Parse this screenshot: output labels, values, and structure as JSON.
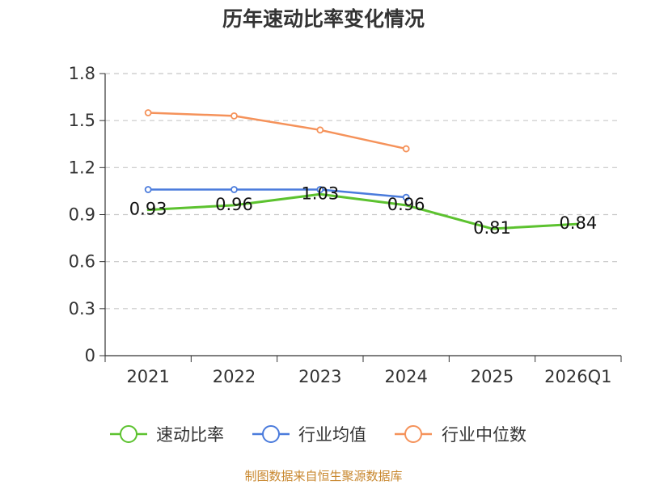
{
  "chart_data": {
    "type": "line",
    "title": "历年速动比率变化情况",
    "categories": [
      "2021",
      "2022",
      "2023",
      "2024",
      "2025",
      "2026Q1"
    ],
    "yticks": [
      "0",
      "0.3",
      "0.6",
      "0.9",
      "1.2",
      "1.5",
      "1.8"
    ],
    "ylim": [
      0,
      1.8
    ],
    "xlabel": "",
    "ylabel": "",
    "grid": "horizontal-dashed",
    "legend_position": "bottom",
    "series": [
      {
        "name": "速动比率",
        "color": "#5cc22f",
        "values": [
          0.93,
          0.96,
          1.03,
          0.96,
          0.81,
          0.84
        ],
        "labels": [
          "0.93",
          "0.96",
          "1.03",
          "0.96",
          "0.81",
          "0.84"
        ],
        "markers_visible": false
      },
      {
        "name": "行业均值",
        "color": "#4a7bdc",
        "values": [
          1.06,
          1.06,
          1.06,
          1.01,
          null,
          null
        ],
        "markers_visible": true
      },
      {
        "name": "行业中位数",
        "color": "#f5925a",
        "values": [
          1.55,
          1.53,
          1.44,
          1.32,
          null,
          null
        ],
        "markers_visible": true
      }
    ],
    "source": "制图数据来自恒生聚源数据库"
  }
}
